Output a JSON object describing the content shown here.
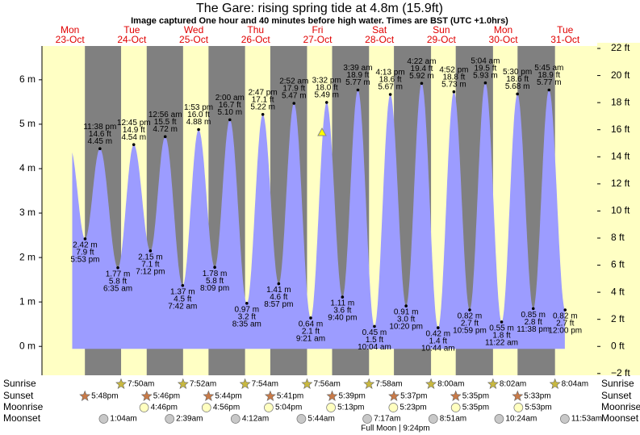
{
  "chart_data": {
    "type": "tide",
    "title": "The Gare: rising  spring tide at 4.8m (15.9ft)",
    "subtitle": "Image captured One hour and 40 minutes before high water. Times are BST (UTC +1.0hrs)",
    "ylim": [
      -0.65,
      6.76
    ],
    "yticks": [
      {
        "value": 0,
        "label": "0 m"
      },
      {
        "value": 1,
        "label": "1 m"
      },
      {
        "value": 2,
        "label": "2 m"
      },
      {
        "value": 3,
        "label": "3 m"
      },
      {
        "value": 4,
        "label": "4 m"
      },
      {
        "value": 5,
        "label": "5 m"
      },
      {
        "value": 6,
        "label": "6 m"
      }
    ],
    "y2lim": [
      -2.13,
      22.18
    ],
    "y2ticks": [
      {
        "value": -2,
        "label": "−2 ft"
      },
      {
        "value": 0,
        "label": "0 ft"
      },
      {
        "value": 2,
        "label": "2 ft"
      },
      {
        "value": 4,
        "label": "4 ft"
      },
      {
        "value": 6,
        "label": "6 ft"
      },
      {
        "value": 8,
        "label": "8 ft"
      },
      {
        "value": 10,
        "label": "10 ft"
      },
      {
        "value": 12,
        "label": "12 ft"
      },
      {
        "value": 14,
        "label": "14 ft"
      },
      {
        "value": 16,
        "label": "16 ft"
      },
      {
        "value": 18,
        "label": "18 ft"
      },
      {
        "value": 20,
        "label": "20 ft"
      },
      {
        "value": 22,
        "label": "22 ft"
      }
    ],
    "row_labels": [
      "Sunrise",
      "Sunset",
      "Moonrise",
      "Moonset"
    ],
    "full_moon": "Full Moon | 9:24pm",
    "colors": {
      "night": "#808080",
      "day": "#ffffc4",
      "water": "#9c9cff",
      "day_text": "#e00000"
    },
    "days": [
      {
        "weekday": "Mon",
        "date": "23-Oct",
        "sunset": "5:48pm",
        "tides": [
          {
            "time": "5:53 pm",
            "m": 2.42,
            "ft": 7.9,
            "m_label": "2.42 m",
            "ft_label": "7.9 ft"
          },
          {
            "time": "11:38 pm",
            "m": 4.45,
            "ft": 14.6,
            "m_label": "4.45 m",
            "ft_label": "14.6 ft"
          }
        ]
      },
      {
        "weekday": "Tue",
        "date": "24-Oct",
        "sunrise": "7:50am",
        "sunset": "5:46pm",
        "moonrise": "4:46pm",
        "moonset": "1:04am",
        "tides": [
          {
            "time": "6:35 am",
            "m": 1.77,
            "ft": 5.8,
            "m_label": "1.77 m",
            "ft_label": "5.8 ft"
          },
          {
            "time": "12:45 pm",
            "m": 4.54,
            "ft": 14.9,
            "m_label": "4.54 m",
            "ft_label": "14.9 ft"
          },
          {
            "time": "7:12 pm",
            "m": 2.15,
            "ft": 7.1,
            "m_label": "2.15 m",
            "ft_label": "7.1 ft"
          }
        ]
      },
      {
        "weekday": "Wed",
        "date": "25-Oct",
        "sunrise": "7:52am",
        "sunset": "5:44pm",
        "moonrise": "4:56pm",
        "moonset": "2:39am",
        "tides": [
          {
            "time": "12:56 am",
            "m": 4.72,
            "ft": 15.5,
            "m_label": "4.72 m",
            "ft_label": "15.5 ft"
          },
          {
            "time": "7:42 am",
            "m": 1.37,
            "ft": 4.5,
            "m_label": "1.37 m",
            "ft_label": "4.5 ft"
          },
          {
            "time": "1:53 pm",
            "m": 4.88,
            "ft": 16.0,
            "m_label": "4.88 m",
            "ft_label": "16.0 ft"
          },
          {
            "time": "8:09 pm",
            "m": 1.78,
            "ft": 5.8,
            "m_label": "1.78 m",
            "ft_label": "5.8 ft"
          }
        ]
      },
      {
        "weekday": "Thu",
        "date": "26-Oct",
        "sunrise": "7:54am",
        "sunset": "5:41pm",
        "moonrise": "5:04pm",
        "moonset": "4:12am",
        "tides": [
          {
            "time": "2:00 am",
            "m": 5.1,
            "ft": 16.7,
            "m_label": "5.10 m",
            "ft_label": "16.7 ft"
          },
          {
            "time": "8:35 am",
            "m": 0.97,
            "ft": 3.2,
            "m_label": "0.97 m",
            "ft_label": "3.2 ft"
          },
          {
            "time": "2:47 pm",
            "m": 5.22,
            "ft": 17.1,
            "m_label": "5.22 m",
            "ft_label": "17.1 ft"
          },
          {
            "time": "8:57 pm",
            "m": 1.41,
            "ft": 4.6,
            "m_label": "1.41 m",
            "ft_label": "4.6 ft"
          }
        ]
      },
      {
        "weekday": "Fri",
        "date": "27-Oct",
        "sunrise": "7:56am",
        "sunset": "5:39pm",
        "moonrise": "5:13pm",
        "moonset": "5:44am",
        "tides": [
          {
            "time": "2:52 am",
            "m": 5.47,
            "ft": 17.9,
            "m_label": "5.47 m",
            "ft_label": "17.9 ft"
          },
          {
            "time": "9:21 am",
            "m": 0.64,
            "ft": 2.1,
            "m_label": "0.64 m",
            "ft_label": "2.1 ft"
          },
          {
            "time": "3:32 pm",
            "m": 5.49,
            "ft": 18.0,
            "m_label": "5.49 m",
            "ft_label": "18.0 ft"
          },
          {
            "time": "9:40 pm",
            "m": 1.11,
            "ft": 3.6,
            "m_label": "1.11 m",
            "ft_label": "3.6 ft"
          }
        ]
      },
      {
        "weekday": "Sat",
        "date": "28-Oct",
        "sunrise": "7:58am",
        "sunset": "5:37pm",
        "moonrise": "5:23pm",
        "moonset": "7:17am",
        "tides": [
          {
            "time": "3:39 am",
            "m": 5.77,
            "ft": 18.9,
            "m_label": "5.77 m",
            "ft_label": "18.9 ft"
          },
          {
            "time": "10:04 am",
            "m": 0.45,
            "ft": 1.5,
            "m_label": "0.45 m",
            "ft_label": "1.5 ft"
          },
          {
            "time": "4:13 pm",
            "m": 5.67,
            "ft": 18.6,
            "m_label": "5.67 m",
            "ft_label": "18.6 ft"
          },
          {
            "time": "10:20 pm",
            "m": 0.91,
            "ft": 3.0,
            "m_label": "0.91 m",
            "ft_label": "3.0 ft"
          }
        ]
      },
      {
        "weekday": "Sun",
        "date": "29-Oct",
        "sunrise": "8:00am",
        "sunset": "5:35pm",
        "moonrise": "5:35pm",
        "moonset": "8:51am",
        "tides": [
          {
            "time": "4:22 am",
            "m": 5.92,
            "ft": 19.4,
            "m_label": "5.92 m",
            "ft_label": "19.4 ft"
          },
          {
            "time": "10:44 am",
            "m": 0.42,
            "ft": 1.4,
            "m_label": "0.42 m",
            "ft_label": "1.4 ft"
          },
          {
            "time": "4:52 pm",
            "m": 5.73,
            "ft": 18.8,
            "m_label": "5.73 m",
            "ft_label": "18.8 ft"
          },
          {
            "time": "10:59 pm",
            "m": 0.82,
            "ft": 2.7,
            "m_label": "0.82 m",
            "ft_label": "2.7 ft"
          }
        ]
      },
      {
        "weekday": "Mon",
        "date": "30-Oct",
        "sunrise": "8:02am",
        "sunset": "5:33pm",
        "moonrise": "5:53pm",
        "moonset": "10:24am",
        "tides": [
          {
            "time": "5:04 am",
            "m": 5.93,
            "ft": 19.5,
            "m_label": "5.93 m",
            "ft_label": "19.5 ft"
          },
          {
            "time": "11:22 am",
            "m": 0.55,
            "ft": 1.8,
            "m_label": "0.55 m",
            "ft_label": "1.8 ft"
          },
          {
            "time": "5:30 pm",
            "m": 5.68,
            "ft": 18.6,
            "m_label": "5.68 m",
            "ft_label": "18.6 ft"
          },
          {
            "time": "11:38 pm",
            "m": 0.85,
            "ft": 2.8,
            "m_label": "0.85 m",
            "ft_label": "2.8 ft"
          }
        ]
      },
      {
        "weekday": "Tue",
        "date": "31-Oct",
        "sunrise": "8:04am",
        "moonset": "11:53am",
        "tides": [
          {
            "time": "5:45 am",
            "m": 5.77,
            "ft": 18.9,
            "m_label": "5.77 m",
            "ft_label": "18.9 ft"
          },
          {
            "time": "12:00 pm",
            "m": 0.82,
            "ft": 2.7,
            "m_label": "0.82 m",
            "ft_label": "2.7 ft"
          }
        ]
      }
    ]
  }
}
